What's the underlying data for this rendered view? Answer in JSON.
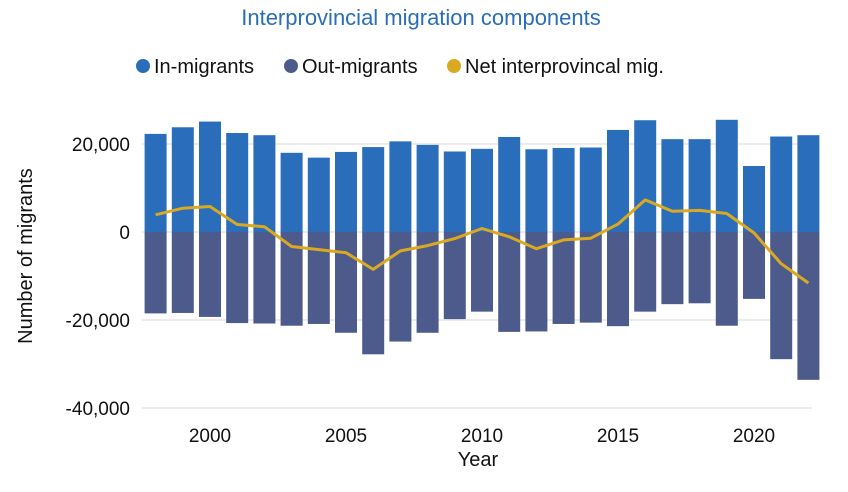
{
  "chart_data": {
    "type": "bar",
    "title": "Interprovincial migration components",
    "xlabel": "Year",
    "ylabel": "Number of migrants",
    "x": [
      1998,
      1999,
      2000,
      2001,
      2002,
      2003,
      2004,
      2005,
      2006,
      2007,
      2008,
      2009,
      2010,
      2011,
      2012,
      2013,
      2014,
      2015,
      2016,
      2017,
      2018,
      2019,
      2020,
      2021,
      2022
    ],
    "xticks": [
      2000,
      2005,
      2010,
      2015,
      2020
    ],
    "xtick_labels": [
      "2000",
      "2005",
      "2010",
      "2015",
      "2020"
    ],
    "yticks": [
      -40000,
      -20000,
      0,
      20000
    ],
    "ytick_labels": [
      "-40,000",
      "-20,000",
      "0",
      "20,000"
    ],
    "ylim": [
      -40000,
      25000
    ],
    "grid": true,
    "legend_position": "top",
    "series": [
      {
        "name": "In-migrants",
        "kind": "bar",
        "color": "#2a6ebb",
        "values": [
          22300,
          23800,
          25100,
          22500,
          22000,
          18000,
          16900,
          18200,
          19300,
          20600,
          19800,
          18300,
          18900,
          21600,
          18800,
          19100,
          19200,
          23200,
          25400,
          21100,
          21100,
          25500,
          15000,
          21700,
          22000
        ]
      },
      {
        "name": "Out-migrants",
        "kind": "bar",
        "color": "#4d5b8c",
        "values": [
          -18500,
          -18400,
          -19300,
          -20700,
          -20800,
          -21300,
          -20900,
          -22900,
          -27800,
          -24900,
          -22900,
          -19800,
          -18100,
          -22700,
          -22600,
          -20900,
          -20600,
          -21400,
          -18100,
          -16400,
          -16200,
          -21300,
          -15200,
          -28900,
          -33600
        ]
      },
      {
        "name": "Net interprovincal mig.",
        "kind": "line",
        "color": "#d9a921",
        "values": [
          3900,
          5400,
          5800,
          1700,
          1200,
          -3300,
          -4000,
          -4700,
          -8500,
          -4300,
          -3100,
          -1500,
          800,
          -1100,
          -3800,
          -1800,
          -1400,
          1800,
          7300,
          4700,
          4900,
          4200,
          -200,
          -7200,
          -11600
        ]
      }
    ]
  }
}
